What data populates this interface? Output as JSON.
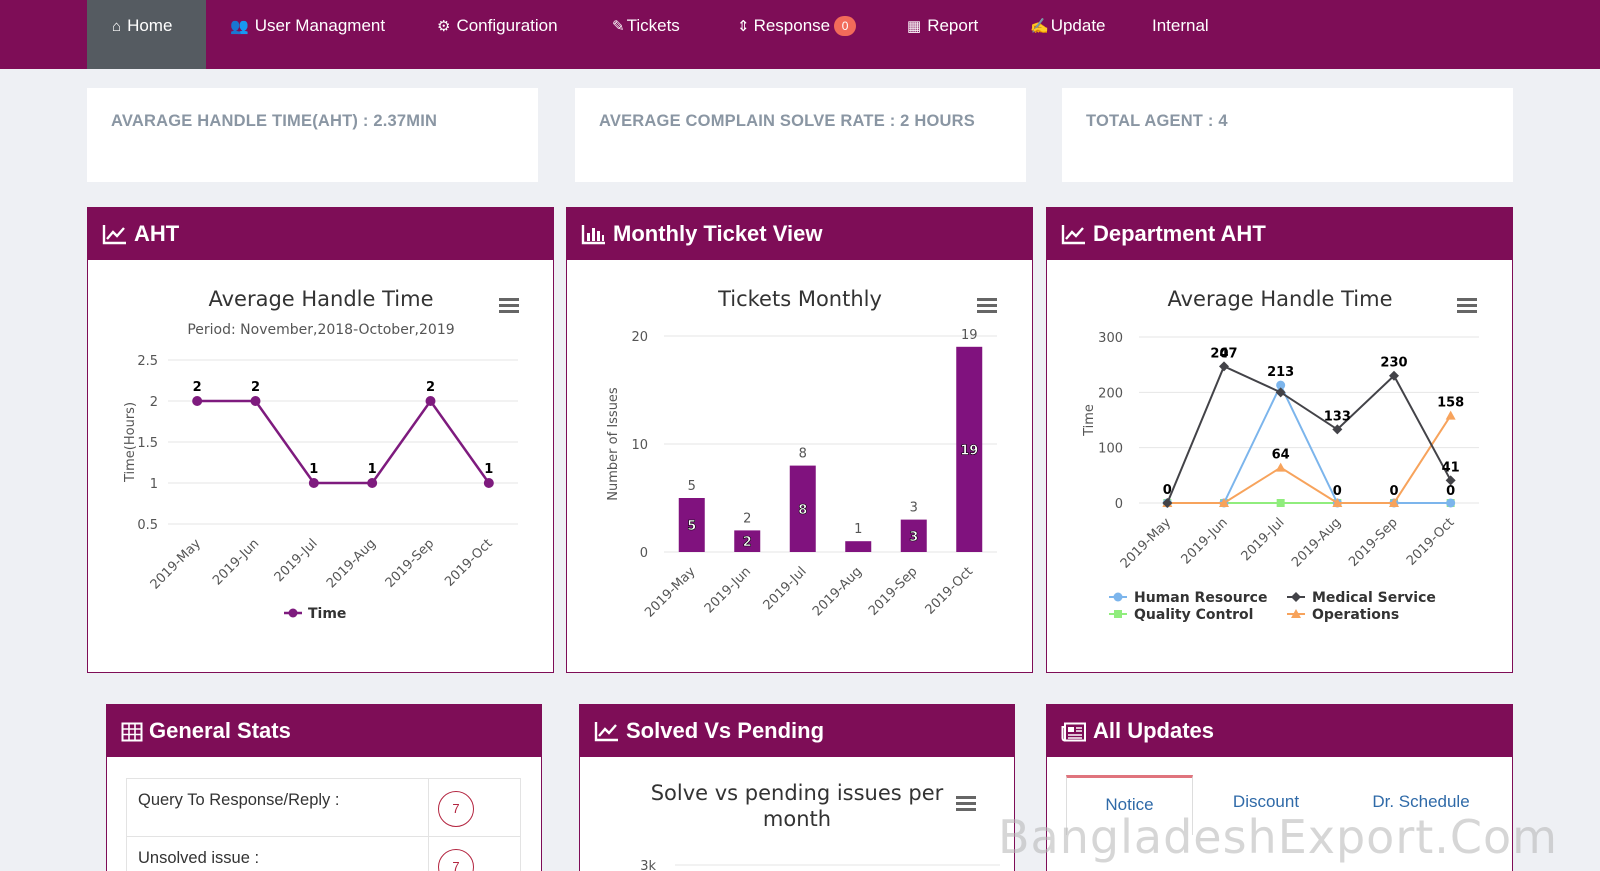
{
  "nav": {
    "items": [
      {
        "label": "Home",
        "icon": "home-icon",
        "active": true
      },
      {
        "label": "User Managment",
        "icon": "users-icon"
      },
      {
        "label": "Configuration",
        "icon": "gear-icon"
      },
      {
        "label": "Tickets",
        "icon": "tag-icon"
      },
      {
        "label": "Response",
        "icon": "sort-icon",
        "badge": "0"
      },
      {
        "label": "Report",
        "icon": "table-icon"
      },
      {
        "label": "Update",
        "icon": "edit-icon"
      },
      {
        "label": "Internal"
      }
    ]
  },
  "stats": {
    "aht": "AVARAGE HANDLE TIME(AHT) : 2.37MIN",
    "solve_rate": "AVERAGE COMPLAIN SOLVE RATE : 2 HOURS",
    "agents": "TOTAL AGENT : 4"
  },
  "panels": {
    "aht": "AHT",
    "monthly": "Monthly Ticket View",
    "dept": "Department AHT",
    "general": "General Stats",
    "solved": "Solved Vs Pending",
    "updates": "All Updates"
  },
  "chart_data": [
    {
      "type": "line",
      "title": "Average Handle Time",
      "subtitle": "Period: November,2018-October,2019",
      "ylabel": "Time(Hours)",
      "categories": [
        "2019-May",
        "2019-Jun",
        "2019-Jul",
        "2019-Aug",
        "2019-Sep",
        "2019-Oct"
      ],
      "series": [
        {
          "name": "Time",
          "values": [
            2,
            2,
            1,
            1,
            2,
            1
          ],
          "color": "#7e1b7e"
        }
      ],
      "yticks": [
        "0.5",
        "1",
        "1.5",
        "2",
        "2.5"
      ],
      "ylim": [
        0.5,
        2.5
      ]
    },
    {
      "type": "bar",
      "title": "Tickets Monthly",
      "ylabel": "Number of Issues",
      "categories": [
        "2019-May",
        "2019-Jun",
        "2019-Jul",
        "2019-Aug",
        "2019-Sep",
        "2019-Oct"
      ],
      "values": [
        5,
        2,
        8,
        1,
        3,
        19
      ],
      "yticks": [
        "0",
        "10",
        "20"
      ],
      "ylim": [
        0,
        20
      ],
      "color": "#80127e"
    },
    {
      "type": "line",
      "title": "Average Handle Time",
      "ylabel": "Time",
      "categories": [
        "2019-May",
        "2019-Jun",
        "2019-Jul",
        "2019-Aug",
        "2019-Sep",
        "2019-Oct"
      ],
      "yticks": [
        "0",
        "100",
        "200",
        "300"
      ],
      "ylim": [
        0,
        300
      ],
      "series": [
        {
          "name": "Human Resource",
          "values": [
            0,
            0,
            213,
            0,
            0,
            0
          ],
          "color": "#7cb5ec",
          "marker": "circle"
        },
        {
          "name": "Medical Service",
          "values": [
            0,
            247,
            200,
            133,
            230,
            41
          ],
          "color": "#434348",
          "marker": "diamond"
        },
        {
          "name": "Quality Control",
          "values": [
            0,
            0,
            0,
            0,
            0,
            0
          ],
          "color": "#90ed7d",
          "marker": "square"
        },
        {
          "name": "Operations",
          "values": [
            0,
            0,
            64,
            0,
            0,
            158
          ],
          "color": "#f7a35c",
          "marker": "triangle"
        }
      ],
      "data_labels": [
        {
          "series": 1,
          "index": 0,
          "text": "0"
        },
        {
          "series": 1,
          "index": 1,
          "text": "0"
        },
        {
          "series": 1,
          "index": 1,
          "text": "247",
          "top": true
        },
        {
          "series": 0,
          "index": 2,
          "text": "213"
        },
        {
          "series": 3,
          "index": 2,
          "text": "64"
        },
        {
          "series": 1,
          "index": 3,
          "text": "133"
        },
        {
          "series": 1,
          "index": 3,
          "text": "0",
          "zero": true
        },
        {
          "series": 1,
          "index": 4,
          "text": "230"
        },
        {
          "series": 1,
          "index": 4,
          "text": "0",
          "zero": true
        },
        {
          "series": 3,
          "index": 5,
          "text": "158"
        },
        {
          "series": 1,
          "index": 5,
          "text": "41"
        },
        {
          "series": 1,
          "index": 5,
          "text": "0",
          "zero": true
        }
      ]
    },
    {
      "type": "bar",
      "title": "Solve vs pending issues per month",
      "yticks": [
        "3k"
      ]
    }
  ],
  "general_stats": [
    {
      "label": "Query To Response/Reply :",
      "value": "7"
    },
    {
      "label": "Unsolved issue :",
      "value": "7"
    }
  ],
  "updates": {
    "tabs": [
      "Notice",
      "Discount",
      "Dr. Schedule"
    ]
  },
  "watermark": "BangladeshExport.Com",
  "colors": {
    "brand": "#7e0d57",
    "nav_active": "#555b61",
    "stat_text": "#8a96a3",
    "badge": "#f26b5a"
  }
}
